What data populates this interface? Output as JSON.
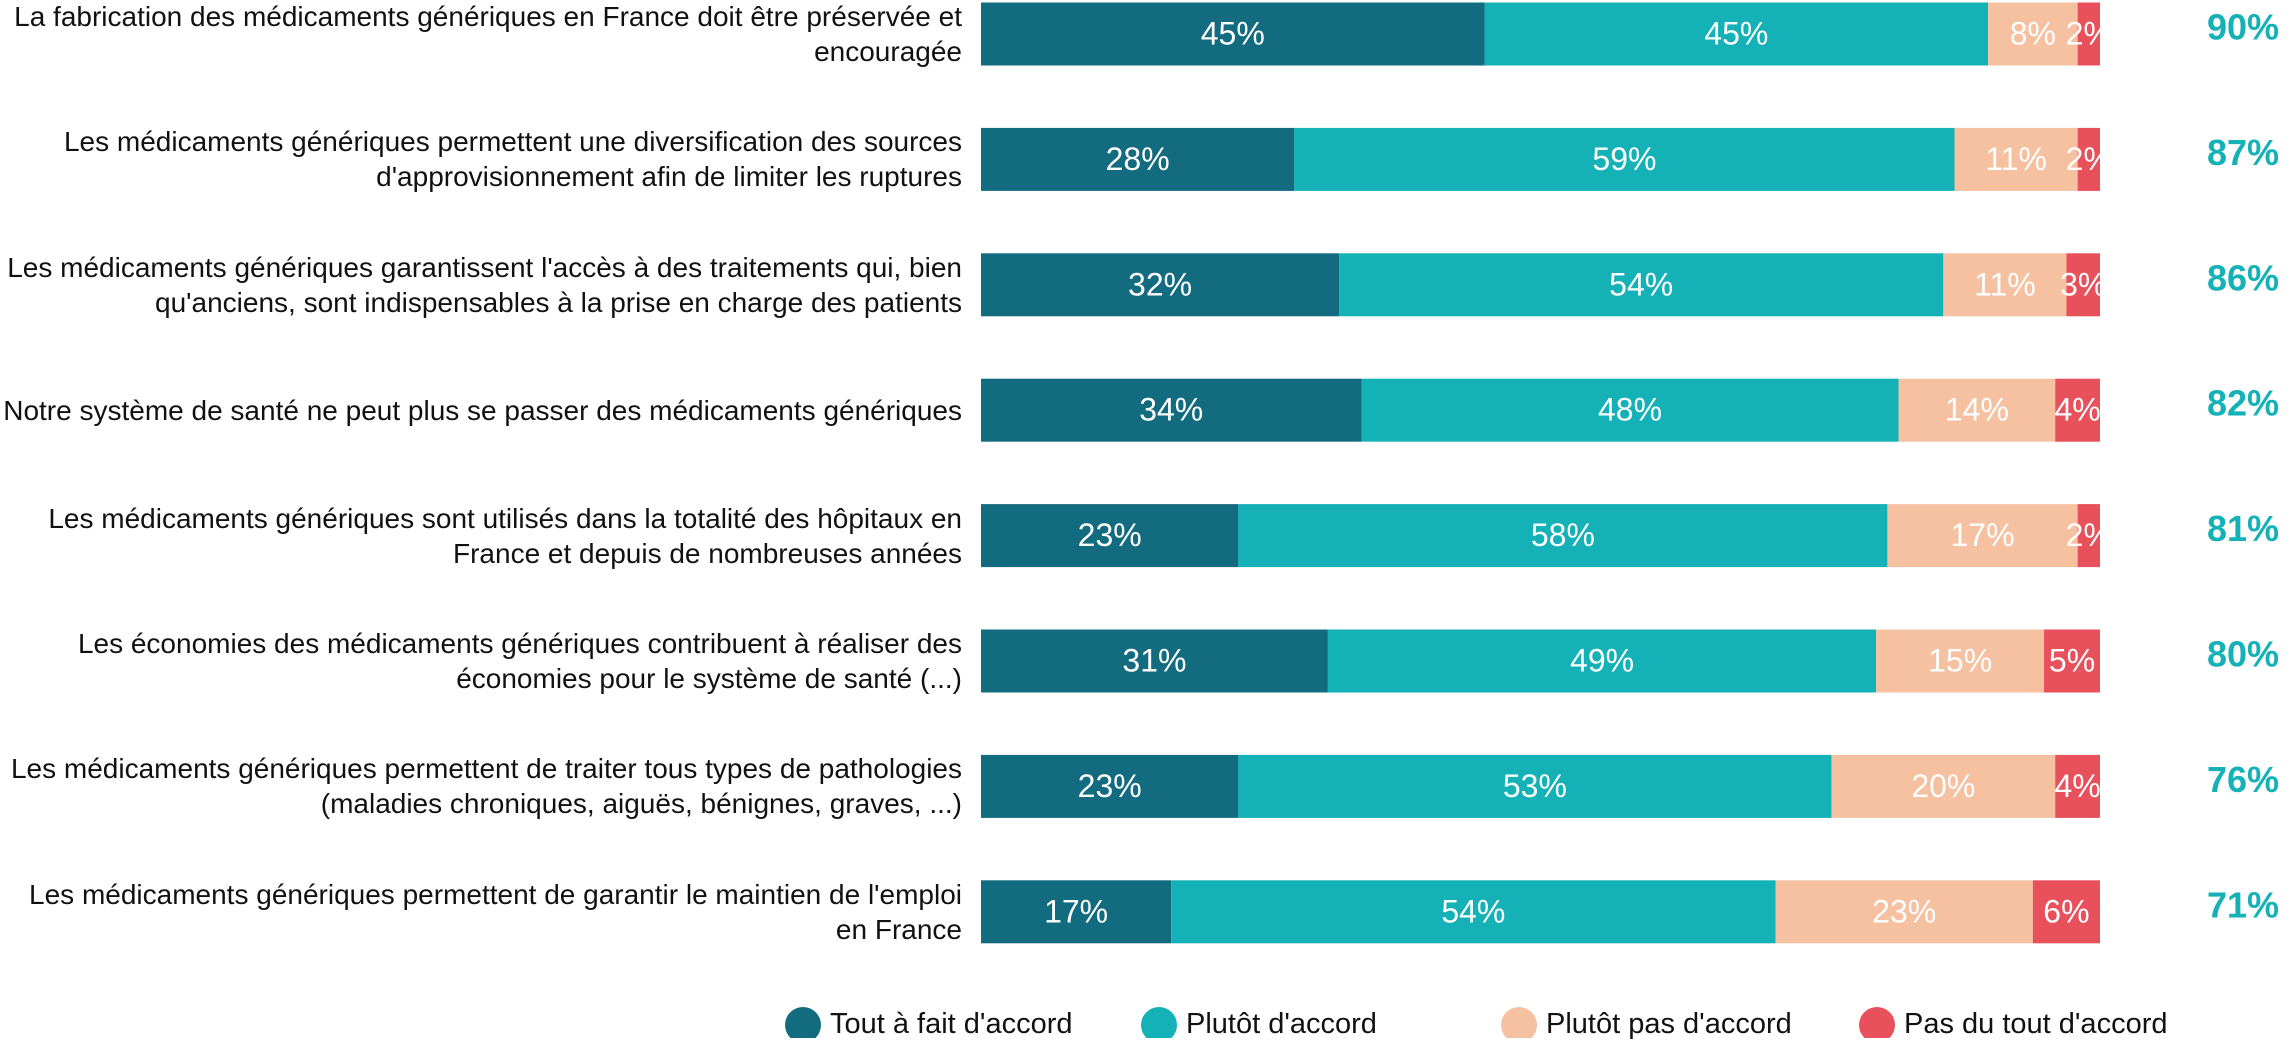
{
  "chart_data": {
    "type": "stacked-bar-horizontal",
    "categories": [
      "La fabrication des médicaments génériques en France doit être préservée et encouragée",
      "Les médicaments génériques permettent une diversification des sources d'approvisionnement afin de limiter les ruptures",
      "Les médicaments génériques garantissent l'accès à des traitements qui, bien qu'anciens, sont indispensables à la prise en charge des patients",
      "Notre système de santé ne peut plus se passer des médicaments génériques",
      "Les médicaments génériques sont utilisés dans la totalité des hôpitaux en France et depuis de nombreuses années",
      "Les économies des médicaments génériques contribuent à réaliser des économies pour le système de santé (...)",
      "Les médicaments génériques permettent de traiter tous types de pathologies (maladies chroniques, aiguës, bénignes, graves, ...)",
      "Les médicaments génériques permettent de garantir le maintien de l'emploi en France"
    ],
    "series": [
      {
        "name": "Tout à fait d'accord",
        "color": "#136b80",
        "values": [
          45,
          28,
          32,
          34,
          23,
          31,
          23,
          17
        ],
        "value_labels": [
          "45%",
          "28%",
          "32%",
          "34%",
          "23%",
          "31%",
          "23%",
          "17%"
        ]
      },
      {
        "name": "Plutôt d'accord",
        "color": "#14b1b7",
        "values": [
          45,
          59,
          54,
          48,
          58,
          49,
          53,
          54
        ],
        "value_labels": [
          "45%",
          "59%",
          "54%",
          "48%",
          "58%",
          "49%",
          "53%",
          "54%"
        ]
      },
      {
        "name": "Plutôt pas d'accord",
        "color": "#f6c1a1",
        "values": [
          8,
          11,
          11,
          14,
          17,
          15,
          20,
          23
        ],
        "value_labels": [
          "8%",
          "11%",
          "11%",
          "14%",
          "17%",
          "15%",
          "20%",
          "23%"
        ]
      },
      {
        "name": "Pas du tout d'accord",
        "color": "#e8505b",
        "values": [
          2,
          2,
          3,
          4,
          2,
          5,
          4,
          6
        ],
        "value_labels": [
          "2%",
          "2%",
          "3%",
          "4%",
          "2%",
          "5%",
          "4%",
          "6%"
        ]
      }
    ],
    "totals": {
      "color": "#14b1b7",
      "values": [
        90,
        87,
        86,
        82,
        81,
        80,
        76,
        71
      ],
      "value_labels": [
        "90%",
        "87%",
        "86%",
        "82%",
        "81%",
        "80%",
        "76%",
        "71%"
      ]
    },
    "xlim": [
      0,
      100
    ],
    "legend": "bottom"
  }
}
